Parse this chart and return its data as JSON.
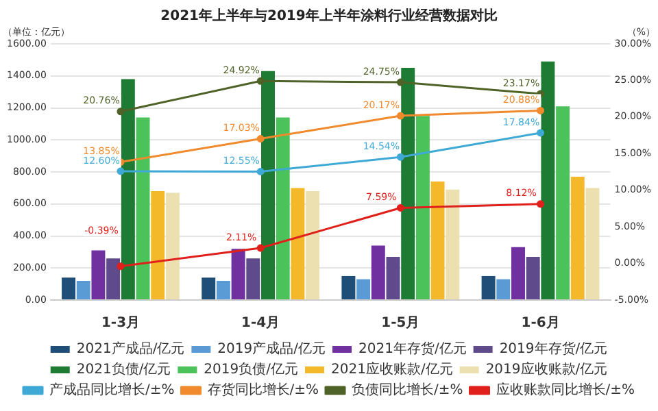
{
  "chart_data": {
    "type": "bar",
    "title": "2021年上半年与2019年上半年涂料行业经营数据对比",
    "ylabel": "（单位：亿元）",
    "y2label": "（%）",
    "categories": [
      "1-3月",
      "1-4月",
      "1-5月",
      "1-6月"
    ],
    "ylim": [
      0,
      1600
    ],
    "yticks": [
      {
        "value": 0,
        "label": "0.00"
      },
      {
        "value": 200,
        "label": "200.00"
      },
      {
        "value": 400,
        "label": "400.00"
      },
      {
        "value": 600,
        "label": "600.00"
      },
      {
        "value": 800,
        "label": "800.00"
      },
      {
        "value": 1000,
        "label": "1000.00"
      },
      {
        "value": 1200,
        "label": "1200.00"
      },
      {
        "value": 1400,
        "label": "1400.00"
      },
      {
        "value": 1600,
        "label": "1600.00"
      }
    ],
    "y2lim": [
      -5,
      30
    ],
    "y2ticks": [
      {
        "value": -5,
        "label": "-5.00%"
      },
      {
        "value": 0,
        "label": "0.00%"
      },
      {
        "value": 5,
        "label": "5.00%"
      },
      {
        "value": 10,
        "label": "10.00%"
      },
      {
        "value": 15,
        "label": "15.00%"
      },
      {
        "value": 20,
        "label": "20.00%"
      },
      {
        "value": 25,
        "label": "25.00%"
      },
      {
        "value": 30,
        "label": "30.00%"
      }
    ],
    "grid": "y",
    "legend": "bottom",
    "marker": "circle",
    "line_style": "solid",
    "series": [
      {
        "name": "2021产成品/亿元",
        "color": "#1f4e79",
        "values": [
          140,
          140,
          150,
          150
        ]
      },
      {
        "name": "2019产成品/亿元",
        "color": "#5b9bd5",
        "values": [
          120,
          120,
          130,
          130
        ]
      },
      {
        "name": "2021年存货/亿元",
        "color": "#7030a0",
        "values": [
          310,
          320,
          340,
          330
        ]
      },
      {
        "name": "2019年存货/亿元",
        "color": "#5f4b8b",
        "values": [
          260,
          260,
          270,
          270
        ]
      },
      {
        "name": "2021负债/亿元",
        "color": "#1e7b34",
        "values": [
          1380,
          1430,
          1450,
          1490
        ]
      },
      {
        "name": "2019负债/亿元",
        "color": "#4cc35a",
        "values": [
          1140,
          1140,
          1150,
          1210
        ]
      },
      {
        "name": "2021应收账款/亿元",
        "color": "#f4b92a",
        "values": [
          680,
          700,
          740,
          770
        ]
      },
      {
        "name": "2019应收账款/亿元",
        "color": "#ede0b0",
        "values": [
          670,
          680,
          690,
          700
        ]
      },
      {
        "name": "产成品同比增长/±%",
        "type": "line",
        "axis": "y2",
        "color": "#3fa9d6",
        "values": [
          12.6,
          12.55,
          14.54,
          17.84
        ],
        "value_labels": [
          "12.60%",
          "12.55%",
          "14.54%",
          "17.84%"
        ]
      },
      {
        "name": "存货同比增长/±%",
        "type": "line",
        "axis": "y2",
        "color": "#f08a2c",
        "values": [
          13.85,
          17.03,
          20.17,
          20.88
        ],
        "value_labels": [
          "13.85%",
          "17.03%",
          "20.17%",
          "20.88%"
        ]
      },
      {
        "name": "负债同比增长/±%",
        "type": "line",
        "axis": "y2",
        "color": "#4f6228",
        "values": [
          20.76,
          24.92,
          24.75,
          23.17
        ],
        "value_labels": [
          "20.76%",
          "24.92%",
          "24.75%",
          "23.17%"
        ]
      },
      {
        "name": "应收账款同比增长/±%",
        "type": "line",
        "axis": "y2",
        "color": "#e0201b",
        "values": [
          -0.39,
          2.11,
          7.59,
          8.12
        ],
        "value_labels": [
          "-0.39%",
          "2.11%",
          "7.59%",
          "8.12%"
        ]
      }
    ]
  }
}
